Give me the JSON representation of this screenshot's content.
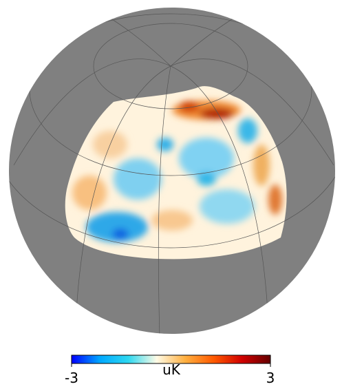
{
  "chart_data": {
    "type": "skymap",
    "colorbar": {
      "label": "uK",
      "lim": [
        -3,
        3
      ],
      "ticks": [
        -3,
        3
      ],
      "cmap": [
        "#0000ff",
        "#00a8ff",
        "#2ed8f0",
        "#fffbe6",
        "#ffb040",
        "#ff5a00",
        "#d00000",
        "#640000"
      ]
    },
    "background": "#808080"
  }
}
